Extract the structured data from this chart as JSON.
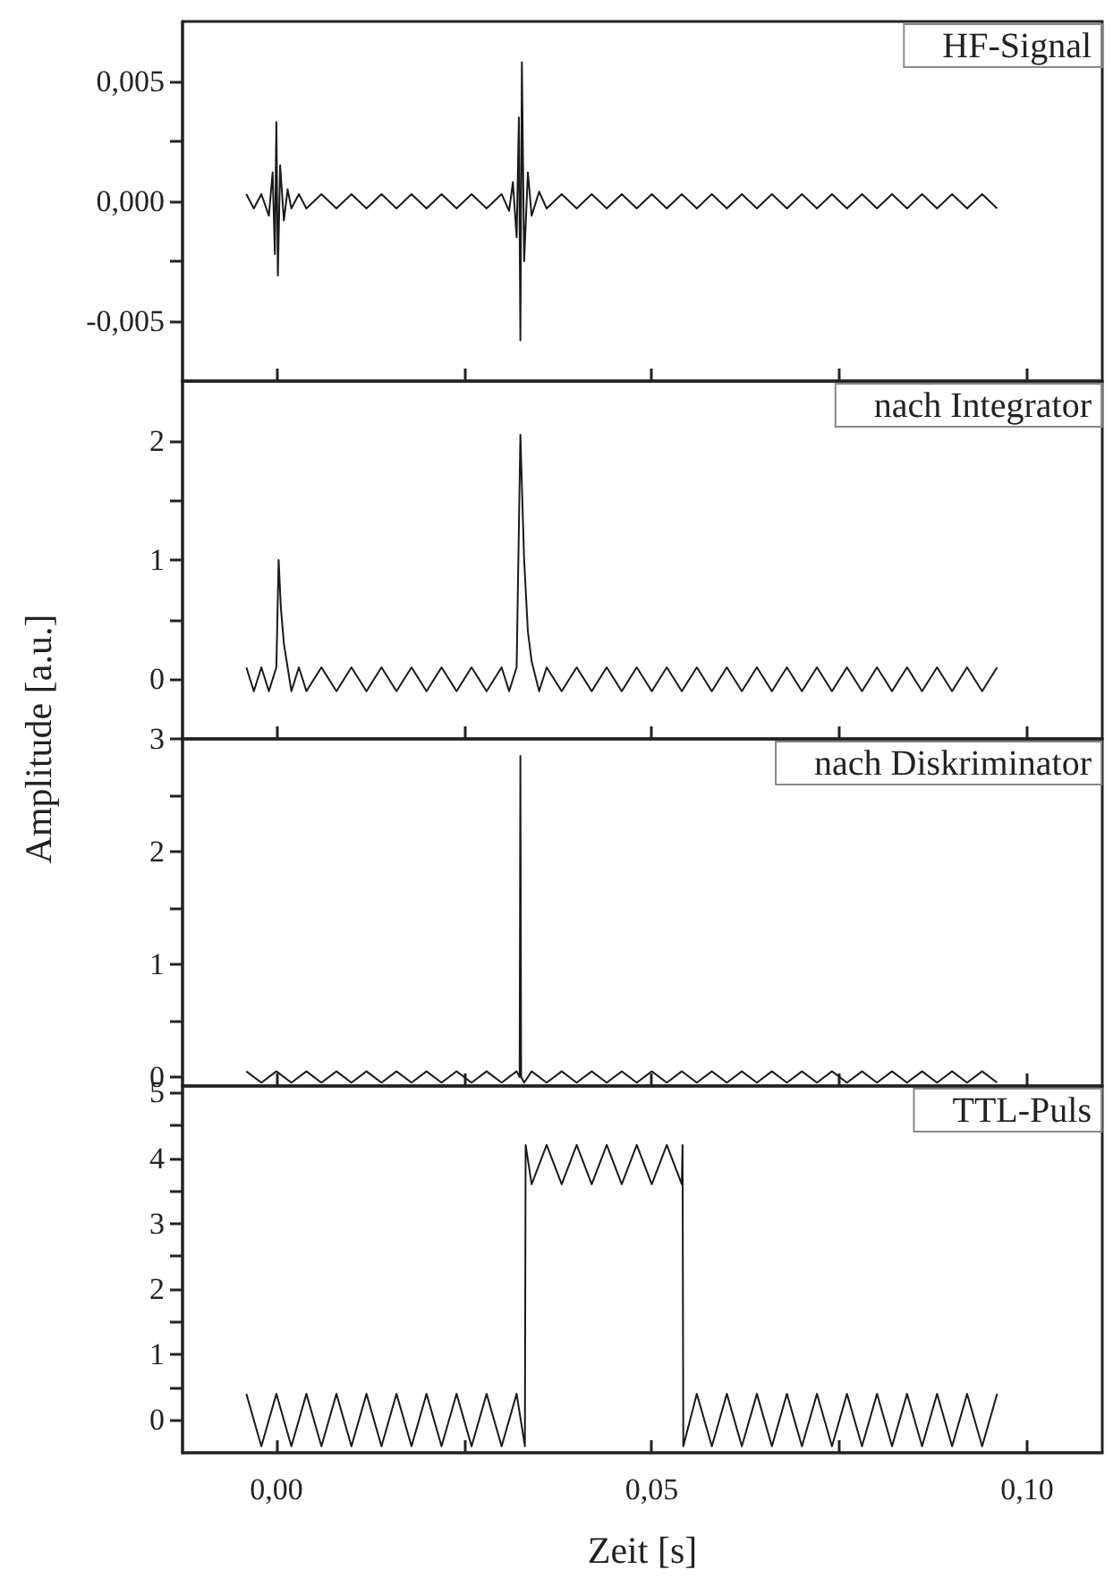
{
  "chart_data": [
    {
      "type": "line",
      "title": "HF-Signal",
      "tick_labels": "y",
      "xlim": [
        -0.0125,
        0.11
      ],
      "ylim": [
        -0.0075,
        0.0075
      ],
      "xticks": [
        {
          "value": 0,
          "label": null
        },
        {
          "value": 0.025,
          "label": null
        },
        {
          "value": 0.05,
          "label": null
        },
        {
          "value": 0.075,
          "label": null
        },
        {
          "value": 0.1,
          "label": null
        }
      ],
      "yticks": [
        {
          "value": -0.005,
          "label": "-0,005"
        },
        {
          "value": -0.0025,
          "label": null
        },
        {
          "value": 0,
          "label": "0,000"
        },
        {
          "value": 0.0025,
          "label": null
        },
        {
          "value": 0.005,
          "label": "0,005"
        }
      ],
      "series": [
        {
          "color": "#1a1a1a",
          "x": [
            -0.004,
            -0.003,
            -0.002,
            -0.001,
            -0.0005,
            -0.0002,
            0,
            0.0002,
            0.0005,
            0.001,
            0.0015,
            0.002,
            0.003,
            0.004,
            0.006,
            0.008,
            0.01,
            0.012,
            0.014,
            0.016,
            0.018,
            0.02,
            0.022,
            0.024,
            0.026,
            0.028,
            0.03,
            0.031,
            0.0315,
            0.032,
            0.0323,
            0.0325,
            0.0327,
            0.033,
            0.0335,
            0.034,
            0.035,
            0.036,
            0.038,
            0.04,
            0.042,
            0.044,
            0.046,
            0.048,
            0.05,
            0.052,
            0.054,
            0.056,
            0.058,
            0.06,
            0.062,
            0.064,
            0.066,
            0.068,
            0.07,
            0.072,
            0.074,
            0.076,
            0.078,
            0.08,
            0.082,
            0.084,
            0.086,
            0.088,
            0.09,
            0.092,
            0.094,
            0.096
          ],
          "values": [
            0.0003,
            -0.0003,
            0.0003,
            -0.0006,
            0.0012,
            -0.0022,
            0.0033,
            -0.0031,
            0.0015,
            -0.0008,
            0.0005,
            -0.0003,
            0.0003,
            -0.0003,
            0.0003,
            -0.0003,
            0.0003,
            -0.0003,
            0.0003,
            -0.0003,
            0.0003,
            -0.0003,
            0.0003,
            -0.0003,
            0.0003,
            -0.0003,
            0.0003,
            -0.0004,
            0.0008,
            -0.0015,
            0.0035,
            -0.0058,
            0.0058,
            -0.0025,
            0.0012,
            -0.0006,
            0.0004,
            -0.0003,
            0.0003,
            -0.0003,
            0.0003,
            -0.0003,
            0.0003,
            -0.0003,
            0.0003,
            -0.0003,
            0.0003,
            -0.0003,
            0.0003,
            -0.0003,
            0.0003,
            -0.0003,
            0.0003,
            -0.0003,
            0.0003,
            -0.0003,
            0.0003,
            -0.0003,
            0.0003,
            -0.0003,
            0.0003,
            -0.0003,
            0.0003,
            -0.0003,
            0.0003,
            -0.0003,
            0.0003,
            -0.0003
          ]
        }
      ]
    },
    {
      "type": "line",
      "title": "nach Integrator",
      "ylabel": "Amplitude [a.u.]",
      "tick_labels": "y",
      "xlim": [
        -0.0125,
        0.11
      ],
      "ylim": [
        -0.5,
        2.5
      ],
      "xticks": [
        {
          "value": 0,
          "label": null
        },
        {
          "value": 0.025,
          "label": null
        },
        {
          "value": 0.05,
          "label": null
        },
        {
          "value": 0.075,
          "label": null
        },
        {
          "value": 0.1,
          "label": null
        }
      ],
      "yticks": [
        0,
        {
          "value": 0.5,
          "label": null
        },
        1,
        {
          "value": 1.5,
          "label": null
        },
        2
      ],
      "series": [
        {
          "color": "#1a1a1a",
          "x": [
            -0.004,
            -0.003,
            -0.002,
            -0.001,
            0,
            0.0003,
            0.0006,
            0.001,
            0.0015,
            0.002,
            0.003,
            0.004,
            0.006,
            0.008,
            0.01,
            0.012,
            0.014,
            0.016,
            0.018,
            0.02,
            0.022,
            0.024,
            0.026,
            0.028,
            0.03,
            0.031,
            0.032,
            0.0325,
            0.033,
            0.0335,
            0.034,
            0.035,
            0.036,
            0.038,
            0.04,
            0.042,
            0.044,
            0.046,
            0.048,
            0.05,
            0.052,
            0.054,
            0.056,
            0.058,
            0.06,
            0.062,
            0.064,
            0.066,
            0.068,
            0.07,
            0.072,
            0.074,
            0.076,
            0.078,
            0.08,
            0.082,
            0.084,
            0.086,
            0.088,
            0.09,
            0.092,
            0.094,
            0.096
          ],
          "values": [
            0.1,
            -0.1,
            0.1,
            -0.1,
            0.1,
            1.0,
            0.6,
            0.3,
            0.1,
            -0.1,
            0.1,
            -0.1,
            0.1,
            -0.1,
            0.1,
            -0.1,
            0.1,
            -0.1,
            0.1,
            -0.1,
            0.1,
            -0.1,
            0.1,
            -0.1,
            0.1,
            -0.1,
            0.1,
            2.05,
            1.0,
            0.4,
            0.15,
            -0.1,
            0.1,
            -0.1,
            0.1,
            -0.1,
            0.1,
            -0.1,
            0.1,
            -0.1,
            0.1,
            -0.1,
            0.1,
            -0.1,
            0.1,
            -0.1,
            0.1,
            -0.1,
            0.1,
            -0.1,
            0.1,
            -0.1,
            0.1,
            -0.1,
            0.1,
            -0.1,
            0.1,
            -0.1,
            0.1,
            -0.1,
            0.1,
            -0.1,
            0.1
          ]
        }
      ]
    },
    {
      "type": "line",
      "title": "nach Diskriminator",
      "tick_labels": "y",
      "xlim": [
        -0.0125,
        0.11
      ],
      "ylim": [
        -0.08,
        3
      ],
      "xticks": [
        {
          "value": 0,
          "label": null
        },
        {
          "value": 0.025,
          "label": null
        },
        {
          "value": 0.05,
          "label": null
        },
        {
          "value": 0.075,
          "label": null
        },
        {
          "value": 0.1,
          "label": null
        }
      ],
      "yticks": [
        0,
        {
          "value": 0.5,
          "label": null
        },
        1,
        {
          "value": 1.5,
          "label": null
        },
        2,
        {
          "value": 2.5,
          "label": null
        },
        3
      ],
      "series": [
        {
          "color": "#1a1a1a",
          "x": [
            -0.004,
            -0.002,
            0,
            0.002,
            0.004,
            0.006,
            0.008,
            0.01,
            0.012,
            0.014,
            0.016,
            0.018,
            0.02,
            0.022,
            0.024,
            0.026,
            0.028,
            0.03,
            0.032,
            0.0324,
            0.0325,
            0.0326,
            0.033,
            0.034,
            0.036,
            0.038,
            0.04,
            0.042,
            0.044,
            0.046,
            0.048,
            0.05,
            0.052,
            0.054,
            0.056,
            0.058,
            0.06,
            0.062,
            0.064,
            0.066,
            0.068,
            0.07,
            0.072,
            0.074,
            0.076,
            0.078,
            0.08,
            0.082,
            0.084,
            0.086,
            0.088,
            0.09,
            0.092,
            0.094,
            0.096
          ],
          "values": [
            0.05,
            -0.05,
            0.05,
            -0.05,
            0.05,
            -0.05,
            0.05,
            -0.05,
            0.05,
            -0.05,
            0.05,
            -0.05,
            0.05,
            -0.05,
            0.05,
            -0.05,
            0.05,
            -0.05,
            0.05,
            0,
            2.85,
            0,
            -0.05,
            0.05,
            -0.05,
            0.05,
            -0.05,
            0.05,
            -0.05,
            0.05,
            -0.05,
            0.05,
            -0.05,
            0.05,
            -0.05,
            0.05,
            -0.05,
            0.05,
            -0.05,
            0.05,
            -0.05,
            0.05,
            -0.05,
            0.05,
            -0.05,
            0.05,
            -0.05,
            0.05,
            -0.05,
            0.05,
            -0.05,
            0.05,
            -0.05,
            0.05,
            -0.05
          ]
        }
      ]
    },
    {
      "type": "line",
      "title": "TTL-Puls",
      "xlabel": "Zeit [s]",
      "xlim": [
        -0.0125,
        0.11
      ],
      "ylim": [
        -0.5,
        5.1
      ],
      "xticks": [
        {
          "value": 0,
          "label": "0,00"
        },
        {
          "value": 0.025,
          "label": null
        },
        {
          "value": 0.05,
          "label": "0,05"
        },
        {
          "value": 0.075,
          "label": null
        },
        {
          "value": 0.1,
          "label": "0,10"
        }
      ],
      "yticks": [
        0,
        {
          "value": 0.5,
          "label": null
        },
        1,
        {
          "value": 1.5,
          "label": null
        },
        2,
        {
          "value": 2.5,
          "label": null
        },
        3,
        {
          "value": 3.5,
          "label": null
        },
        4,
        {
          "value": 4.5,
          "label": null
        },
        5
      ],
      "series": [
        {
          "color": "#1a1a1a",
          "x": [
            -0.004,
            -0.002,
            0,
            0.002,
            0.004,
            0.006,
            0.008,
            0.01,
            0.012,
            0.014,
            0.016,
            0.018,
            0.02,
            0.022,
            0.024,
            0.026,
            0.028,
            0.03,
            0.032,
            0.0331,
            0.0332,
            0.034,
            0.036,
            0.038,
            0.04,
            0.042,
            0.044,
            0.046,
            0.048,
            0.05,
            0.052,
            0.054,
            0.0541,
            0.0542,
            0.056,
            0.058,
            0.06,
            0.062,
            0.064,
            0.066,
            0.068,
            0.07,
            0.072,
            0.074,
            0.076,
            0.078,
            0.08,
            0.082,
            0.084,
            0.086,
            0.088,
            0.09,
            0.092,
            0.094,
            0.096
          ],
          "values": [
            0.4,
            -0.4,
            0.4,
            -0.4,
            0.4,
            -0.4,
            0.4,
            -0.4,
            0.4,
            -0.4,
            0.4,
            -0.4,
            0.4,
            -0.4,
            0.4,
            -0.4,
            0.4,
            -0.4,
            0.4,
            -0.4,
            4.2,
            3.6,
            4.2,
            3.6,
            4.2,
            3.6,
            4.2,
            3.6,
            4.2,
            3.6,
            4.2,
            3.6,
            4.2,
            -0.4,
            0.4,
            -0.4,
            0.4,
            -0.4,
            0.4,
            -0.4,
            0.4,
            -0.4,
            0.4,
            -0.4,
            0.4,
            -0.4,
            0.4,
            -0.4,
            0.4,
            -0.4,
            0.4,
            -0.4,
            0.4,
            -0.4,
            0.4
          ]
        }
      ]
    }
  ]
}
